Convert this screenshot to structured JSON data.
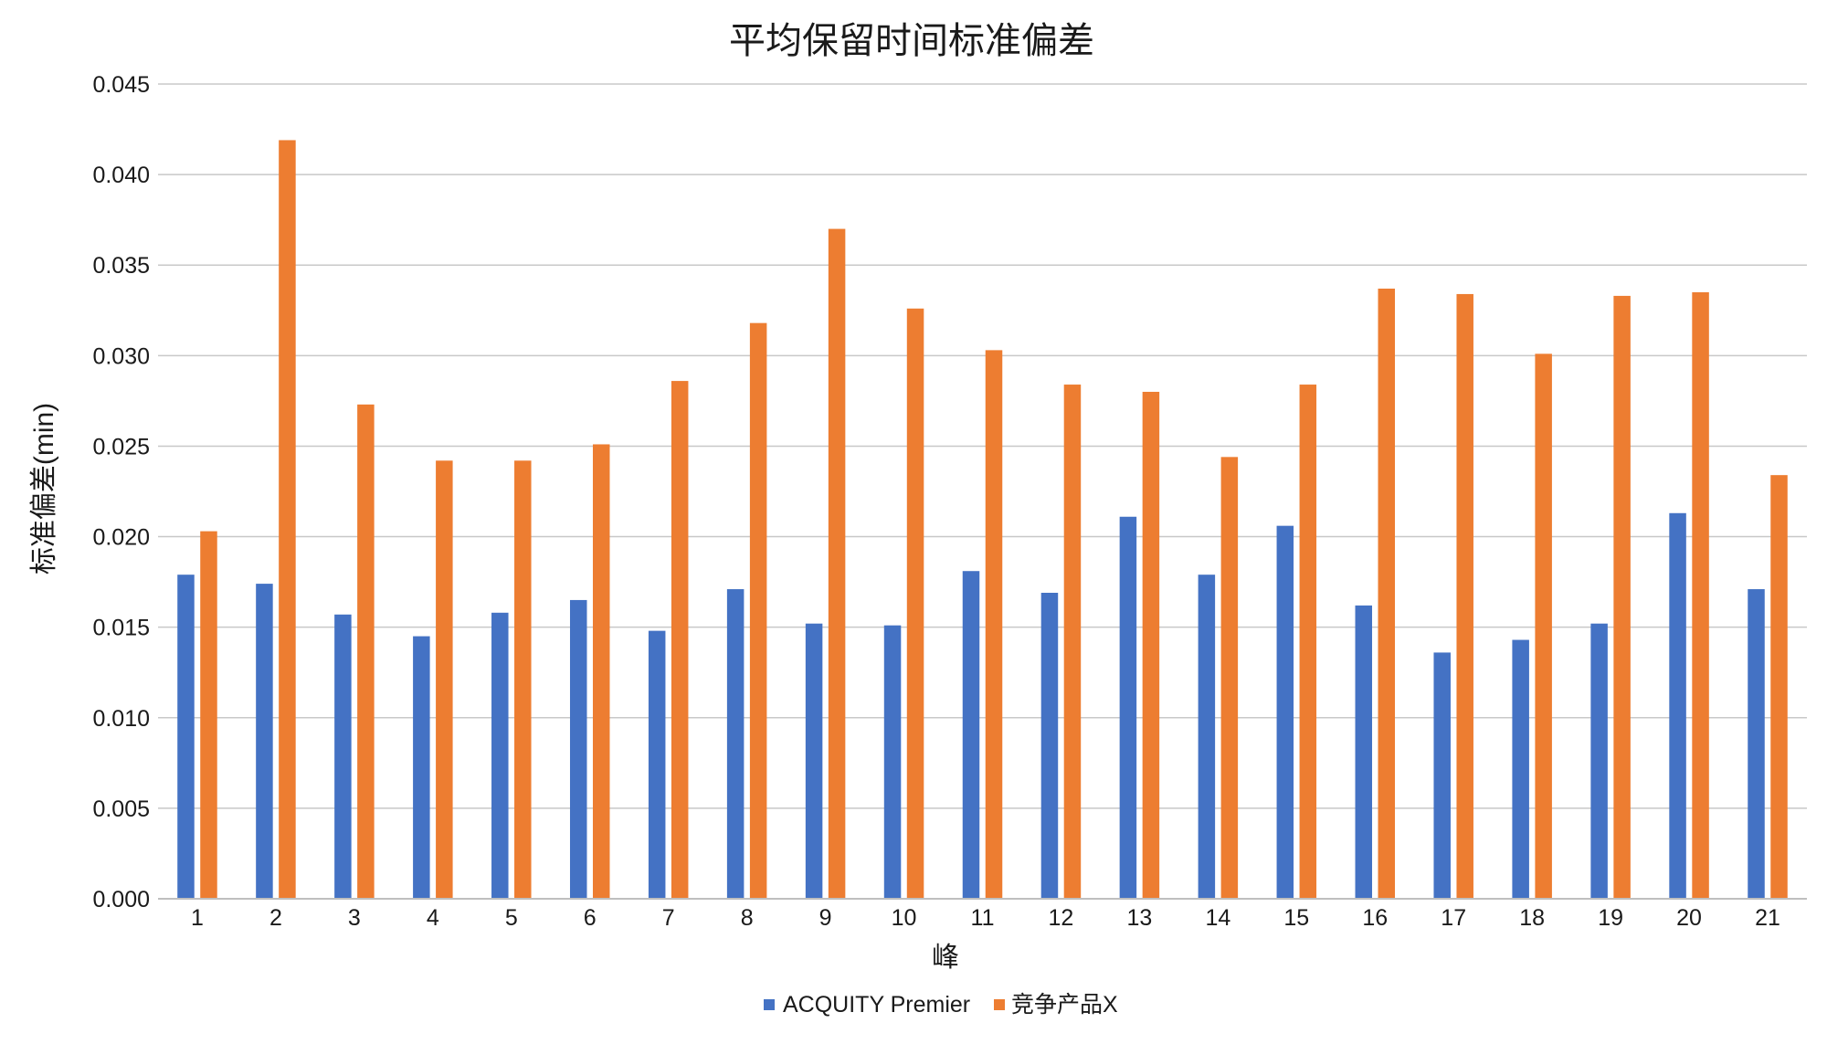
{
  "chart_data": {
    "type": "bar",
    "title": "平均保留时间标准偏差",
    "xlabel": "峰",
    "ylabel": "标准偏差(min)",
    "ylim": [
      0,
      0.045
    ],
    "yticks": [
      "0.000",
      "0.005",
      "0.010",
      "0.015",
      "0.020",
      "0.025",
      "0.030",
      "0.035",
      "0.040",
      "0.045"
    ],
    "categories": [
      "1",
      "2",
      "3",
      "4",
      "5",
      "6",
      "7",
      "8",
      "9",
      "10",
      "11",
      "12",
      "13",
      "14",
      "15",
      "16",
      "17",
      "18",
      "19",
      "20",
      "21"
    ],
    "series": [
      {
        "name": "ACQUITY Premier",
        "color": "#4472C4",
        "values": [
          0.0179,
          0.0174,
          0.0157,
          0.0145,
          0.0158,
          0.0165,
          0.0148,
          0.0171,
          0.0152,
          0.0151,
          0.0181,
          0.0169,
          0.0211,
          0.0179,
          0.0206,
          0.0162,
          0.0136,
          0.0143,
          0.0152,
          0.0213,
          0.0171
        ]
      },
      {
        "name": "竞争产品X",
        "color": "#ED7D31",
        "values": [
          0.0203,
          0.0419,
          0.0273,
          0.0242,
          0.0242,
          0.0251,
          0.0286,
          0.0318,
          0.037,
          0.0326,
          0.0303,
          0.0284,
          0.028,
          0.0244,
          0.0284,
          0.0337,
          0.0334,
          0.0301,
          0.0333,
          0.0335,
          0.0234
        ]
      }
    ],
    "grid": true,
    "legend_position": "bottom"
  }
}
